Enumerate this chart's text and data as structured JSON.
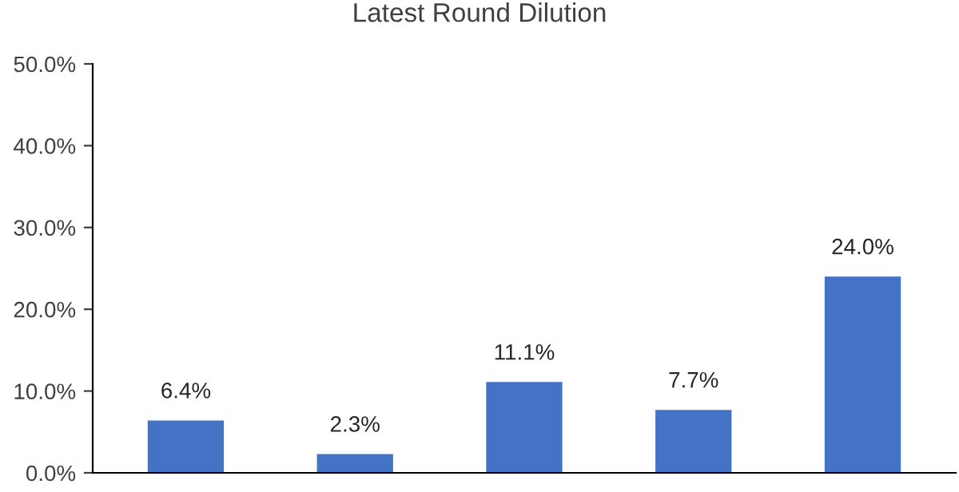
{
  "chart_data": {
    "type": "bar",
    "title": "Latest Round Dilution",
    "categories": [
      null,
      null,
      null,
      null,
      null
    ],
    "values": [
      6.4,
      2.3,
      11.1,
      7.7,
      24.0
    ],
    "value_labels": [
      "6.4%",
      "2.3%",
      "11.1%",
      "7.7%",
      "24.0%"
    ],
    "color": "#4472c4",
    "ylim": [
      0,
      50
    ],
    "yticks": [
      {
        "value": 0,
        "label": "0.0%"
      },
      {
        "value": 10,
        "label": "10.0%"
      },
      {
        "value": 20,
        "label": "20.0%"
      },
      {
        "value": 30,
        "label": "30.0%"
      },
      {
        "value": 40,
        "label": "40.0%"
      },
      {
        "value": 50,
        "label": "50.0%"
      }
    ],
    "grid": false,
    "legend": false
  }
}
